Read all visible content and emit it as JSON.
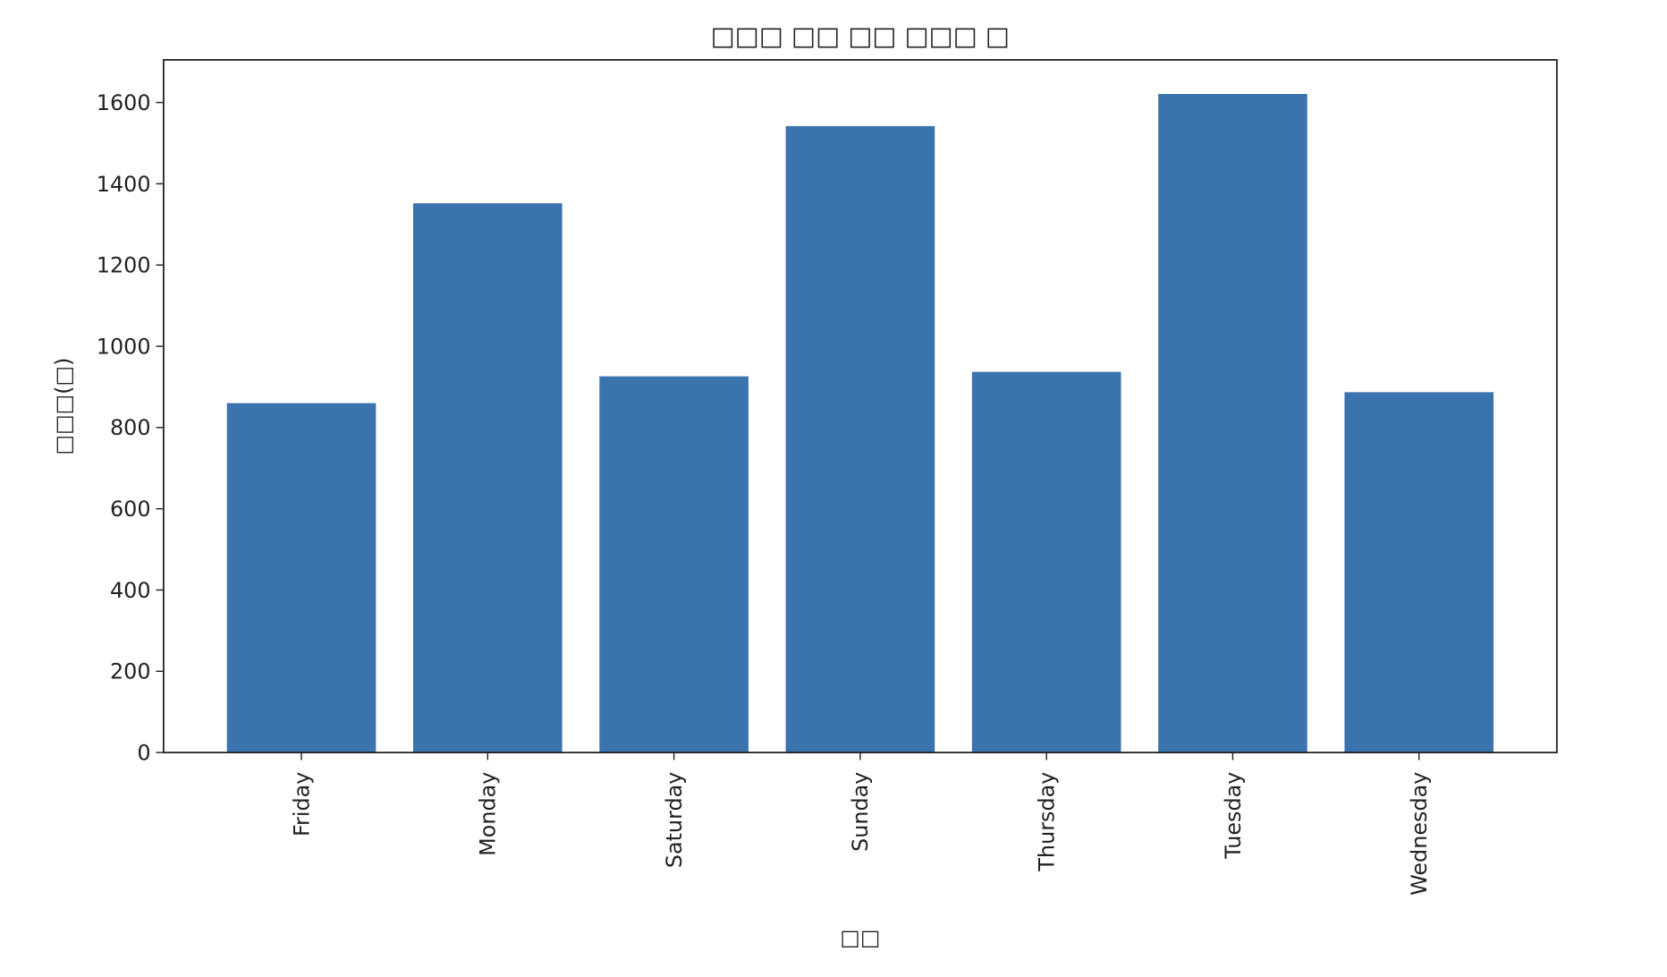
{
  "chart_data": {
    "type": "bar",
    "title": "□□□ □□ □□ □□□ □",
    "x_label": "□□",
    "y_label": "□□□(□)",
    "categories": [
      "Friday",
      "Monday",
      "Saturday",
      "Sunday",
      "Thursday",
      "Tuesday",
      "Wednesday"
    ],
    "values": [
      860,
      1352,
      926,
      1542,
      937,
      1621,
      887
    ],
    "color": "#3b73ae",
    "ylim": [
      0,
      1705
    ],
    "yticks": [
      0,
      200,
      400,
      600,
      800,
      1000,
      1200,
      1400,
      1600
    ],
    "grid": false
  }
}
